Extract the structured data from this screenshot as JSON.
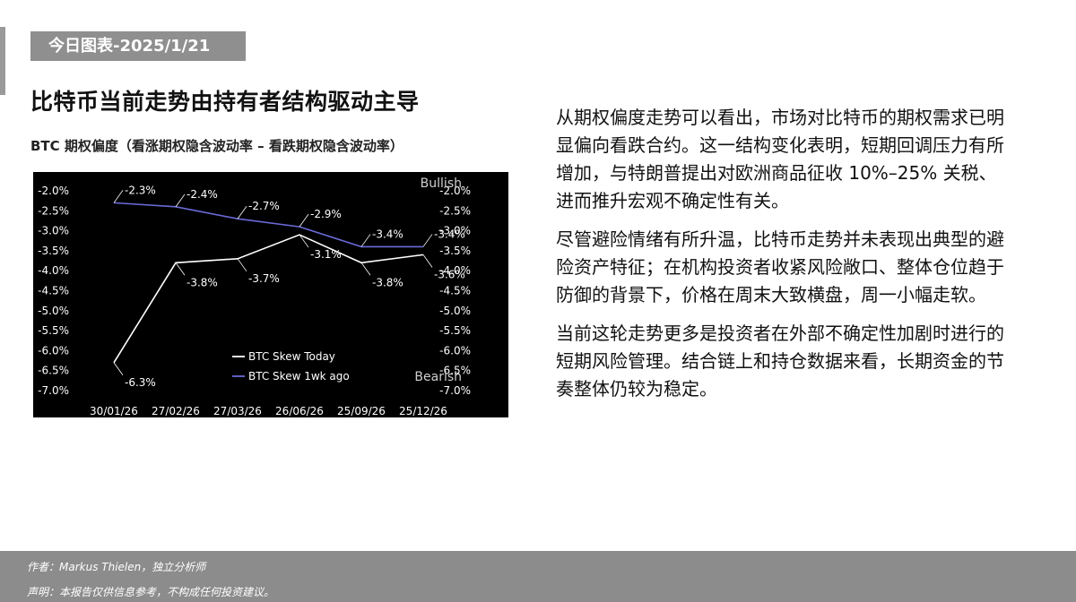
{
  "header": {
    "date_tag": "今日图表-2025/1/21",
    "headline": "比特币当前走势由持有者结构驱动主导",
    "chart_title": "BTC 期权偏度（看涨期权隐含波动率 – 看跌期权隐含波动率）"
  },
  "body": {
    "paragraphs": [
      "从期权偏度走势可以看出，市场对比特币的期权需求已明显偏向看跌合约。这一结构变化表明，短期回调压力有所增加，与特朗普提出对欧洲商品征收 10%–25% 关税、进而推升宏观不确定性有关。",
      "尽管避险情绪有所升温，比特币走势并未表现出典型的避险资产特征；在机构投资者收紧风险敞口、整体仓位趋于防御的背景下，价格在周末大致横盘，周一小幅走软。",
      "当前这轮走势更多是投资者在外部不确定性加剧时进行的短期风险管理。结合链上和持仓数据来看，长期资金的节奏整体仍较为稳定。"
    ]
  },
  "footer": {
    "author": "作者：Markus Thielen，独立分析师",
    "disclaimer": "声明：本报告仅供信息参考，不构成任何投资建议。"
  },
  "chart_data": {
    "type": "line",
    "categories": [
      "30/01/26",
      "27/02/26",
      "27/03/26",
      "26/06/26",
      "25/09/26",
      "25/12/26"
    ],
    "series": [
      {
        "name": "BTC Skew Today",
        "color": "#ffffff",
        "values": [
          -6.3,
          -3.8,
          -3.7,
          -3.1,
          -3.8,
          -3.6
        ],
        "labels": [
          "-6.3%",
          "-3.8%",
          "-3.7%",
          "-3.1%",
          "-3.8%",
          "-3.6%"
        ]
      },
      {
        "name": "BTC Skew 1wk ago",
        "color": "#6a6ad8",
        "values": [
          -2.3,
          -2.4,
          -2.7,
          -2.9,
          -3.4,
          -3.4
        ],
        "labels": [
          "-2.3%",
          "-2.4%",
          "-2.7%",
          "-2.9%",
          "-3.4%",
          "-3.4%"
        ]
      }
    ],
    "ylim": [
      -7.0,
      -2.0
    ],
    "yticks": [
      "-2.0%",
      "-2.5%",
      "-3.0%",
      "-3.5%",
      "-4.0%",
      "-4.5%",
      "-5.0%",
      "-5.5%",
      "-6.0%",
      "-6.5%",
      "-7.0%"
    ],
    "top_annotation": "Bullish",
    "bottom_annotation": "Bearish",
    "grid": false,
    "legend_position": "bottom-center",
    "background": "#000000"
  }
}
